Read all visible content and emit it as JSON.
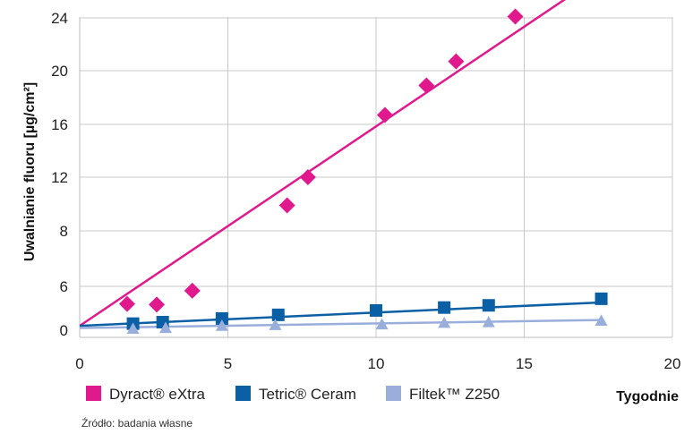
{
  "chart_data": {
    "type": "scatter",
    "ylabel": "Uwalnianie fluoru [µg/cm²]",
    "xlabel": "Tygodnie",
    "xlim": [
      0,
      20
    ],
    "ylim": [
      0,
      24
    ],
    "x_ticks": [
      0,
      5,
      10,
      15,
      20
    ],
    "y_ticks": [
      0,
      6,
      8,
      12,
      16,
      20,
      24
    ],
    "grid": true,
    "legend_position": "bottom",
    "source": "Źródło: badania własne",
    "series": [
      {
        "name": "Dyract® eXtra",
        "color": "#e0198c",
        "marker": "diamond",
        "points": [
          [
            1.6,
            3.6
          ],
          [
            2.6,
            3.5
          ],
          [
            3.8,
            5.4
          ],
          [
            7.0,
            9.9
          ],
          [
            7.7,
            12.0
          ],
          [
            10.3,
            16.7
          ],
          [
            11.7,
            18.9
          ],
          [
            12.7,
            20.7
          ],
          [
            14.7,
            24.1
          ]
        ],
        "trend": [
          [
            0,
            0.6
          ],
          [
            16.5,
            25.6
          ]
        ]
      },
      {
        "name": "Tetric® Ceram",
        "color": "#0b5fa5",
        "marker": "square",
        "points": [
          [
            1.8,
            0.9
          ],
          [
            2.8,
            1.1
          ],
          [
            4.8,
            1.6
          ],
          [
            6.7,
            2.1
          ],
          [
            10.0,
            2.7
          ],
          [
            12.3,
            3.1
          ],
          [
            13.8,
            3.4
          ],
          [
            17.6,
            4.3
          ]
        ],
        "trend": [
          [
            0,
            0.6
          ],
          [
            17.6,
            3.8
          ]
        ]
      },
      {
        "name": "Filtek™ Z250",
        "color": "#9aaedc",
        "marker": "triangle",
        "points": [
          [
            1.8,
            0.2
          ],
          [
            2.9,
            0.3
          ],
          [
            4.8,
            0.6
          ],
          [
            6.6,
            0.7
          ],
          [
            10.2,
            0.8
          ],
          [
            12.3,
            1.0
          ],
          [
            13.8,
            1.1
          ],
          [
            17.6,
            1.3
          ]
        ],
        "trend": [
          [
            0,
            0.3
          ],
          [
            17.6,
            1.4
          ]
        ]
      }
    ]
  }
}
